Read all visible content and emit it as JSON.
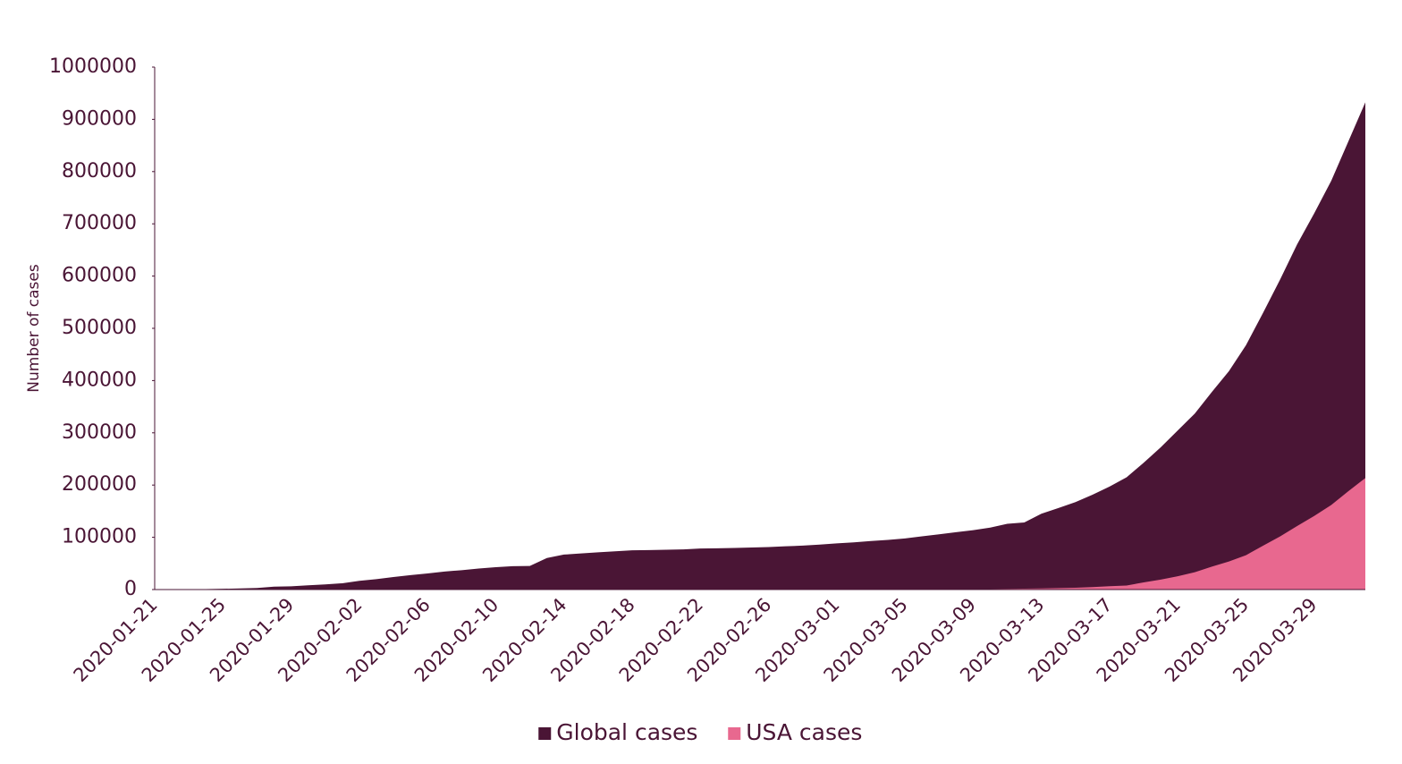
{
  "chart_data": {
    "type": "area",
    "y_label": "Number of cases",
    "x": [
      "2020-01-21",
      null,
      null,
      null,
      "2020-01-25",
      null,
      null,
      null,
      "2020-01-29",
      null,
      null,
      null,
      "2020-02-02",
      null,
      null,
      null,
      "2020-02-06",
      null,
      null,
      null,
      "2020-02-10",
      null,
      null,
      null,
      "2020-02-14",
      null,
      null,
      null,
      "2020-02-18",
      null,
      null,
      null,
      "2020-02-22",
      null,
      null,
      null,
      "2020-02-26",
      null,
      null,
      null,
      "2020-03-01",
      null,
      null,
      null,
      "2020-03-05",
      null,
      null,
      null,
      "2020-03-09",
      null,
      null,
      null,
      "2020-03-13",
      null,
      null,
      null,
      "2020-03-17",
      null,
      null,
      null,
      "2020-03-21",
      null,
      null,
      null,
      "2020-03-25",
      null,
      null,
      null,
      "2020-03-29",
      null,
      null,
      null
    ],
    "series": [
      {
        "name": "Global cases",
        "color": "#4a1535",
        "values": [
          300,
          555,
          654,
          941,
          1434,
          2118,
          2927,
          5578,
          6166,
          8234,
          9927,
          12038,
          16787,
          19887,
          23898,
          27643,
          30802,
          34395,
          37129,
          40160,
          42769,
          44811,
          45228,
          60381,
          66907,
          69051,
          71235,
          73270,
          75152,
          75652,
          76212,
          76843,
          78599,
          78985,
          79570,
          80415,
          81397,
          82756,
          84124,
          86013,
          88371,
          90309,
          92844,
          95124,
          97886,
          101800,
          105836,
          109835,
          113582,
          118582,
          125865,
          128343,
          145193,
          156097,
          167449,
          181546,
          197168,
          214915,
          242713,
          272167,
          304528,
          336953,
          378235,
          418045,
          467653,
          529591,
          593291,
          660706,
          720117,
          782365,
          857487,
          932605
        ]
      },
      {
        "name": "USA cases",
        "color": "#e8688f",
        "values": [
          1,
          1,
          1,
          2,
          2,
          5,
          5,
          5,
          5,
          6,
          7,
          8,
          8,
          11,
          11,
          11,
          12,
          12,
          12,
          12,
          12,
          13,
          13,
          14,
          14,
          14,
          14,
          14,
          14,
          14,
          14,
          16,
          16,
          16,
          16,
          16,
          16,
          17,
          60,
          68,
          74,
          98,
          118,
          159,
          217,
          262,
          417,
          537,
          605,
          959,
          1281,
          1663,
          2179,
          2727,
          3499,
          4632,
          6421,
          7786,
          13680,
          19101,
          25493,
          33276,
          43847,
          53740,
          65778,
          83836,
          101657,
          121478,
          140886,
          161807,
          188172,
          213372
        ]
      }
    ],
    "ylim": [
      0,
      1000000
    ],
    "yticks": [
      0,
      100000,
      200000,
      300000,
      400000,
      500000,
      600000,
      700000,
      800000,
      900000,
      1000000
    ],
    "legend": "bottom"
  }
}
